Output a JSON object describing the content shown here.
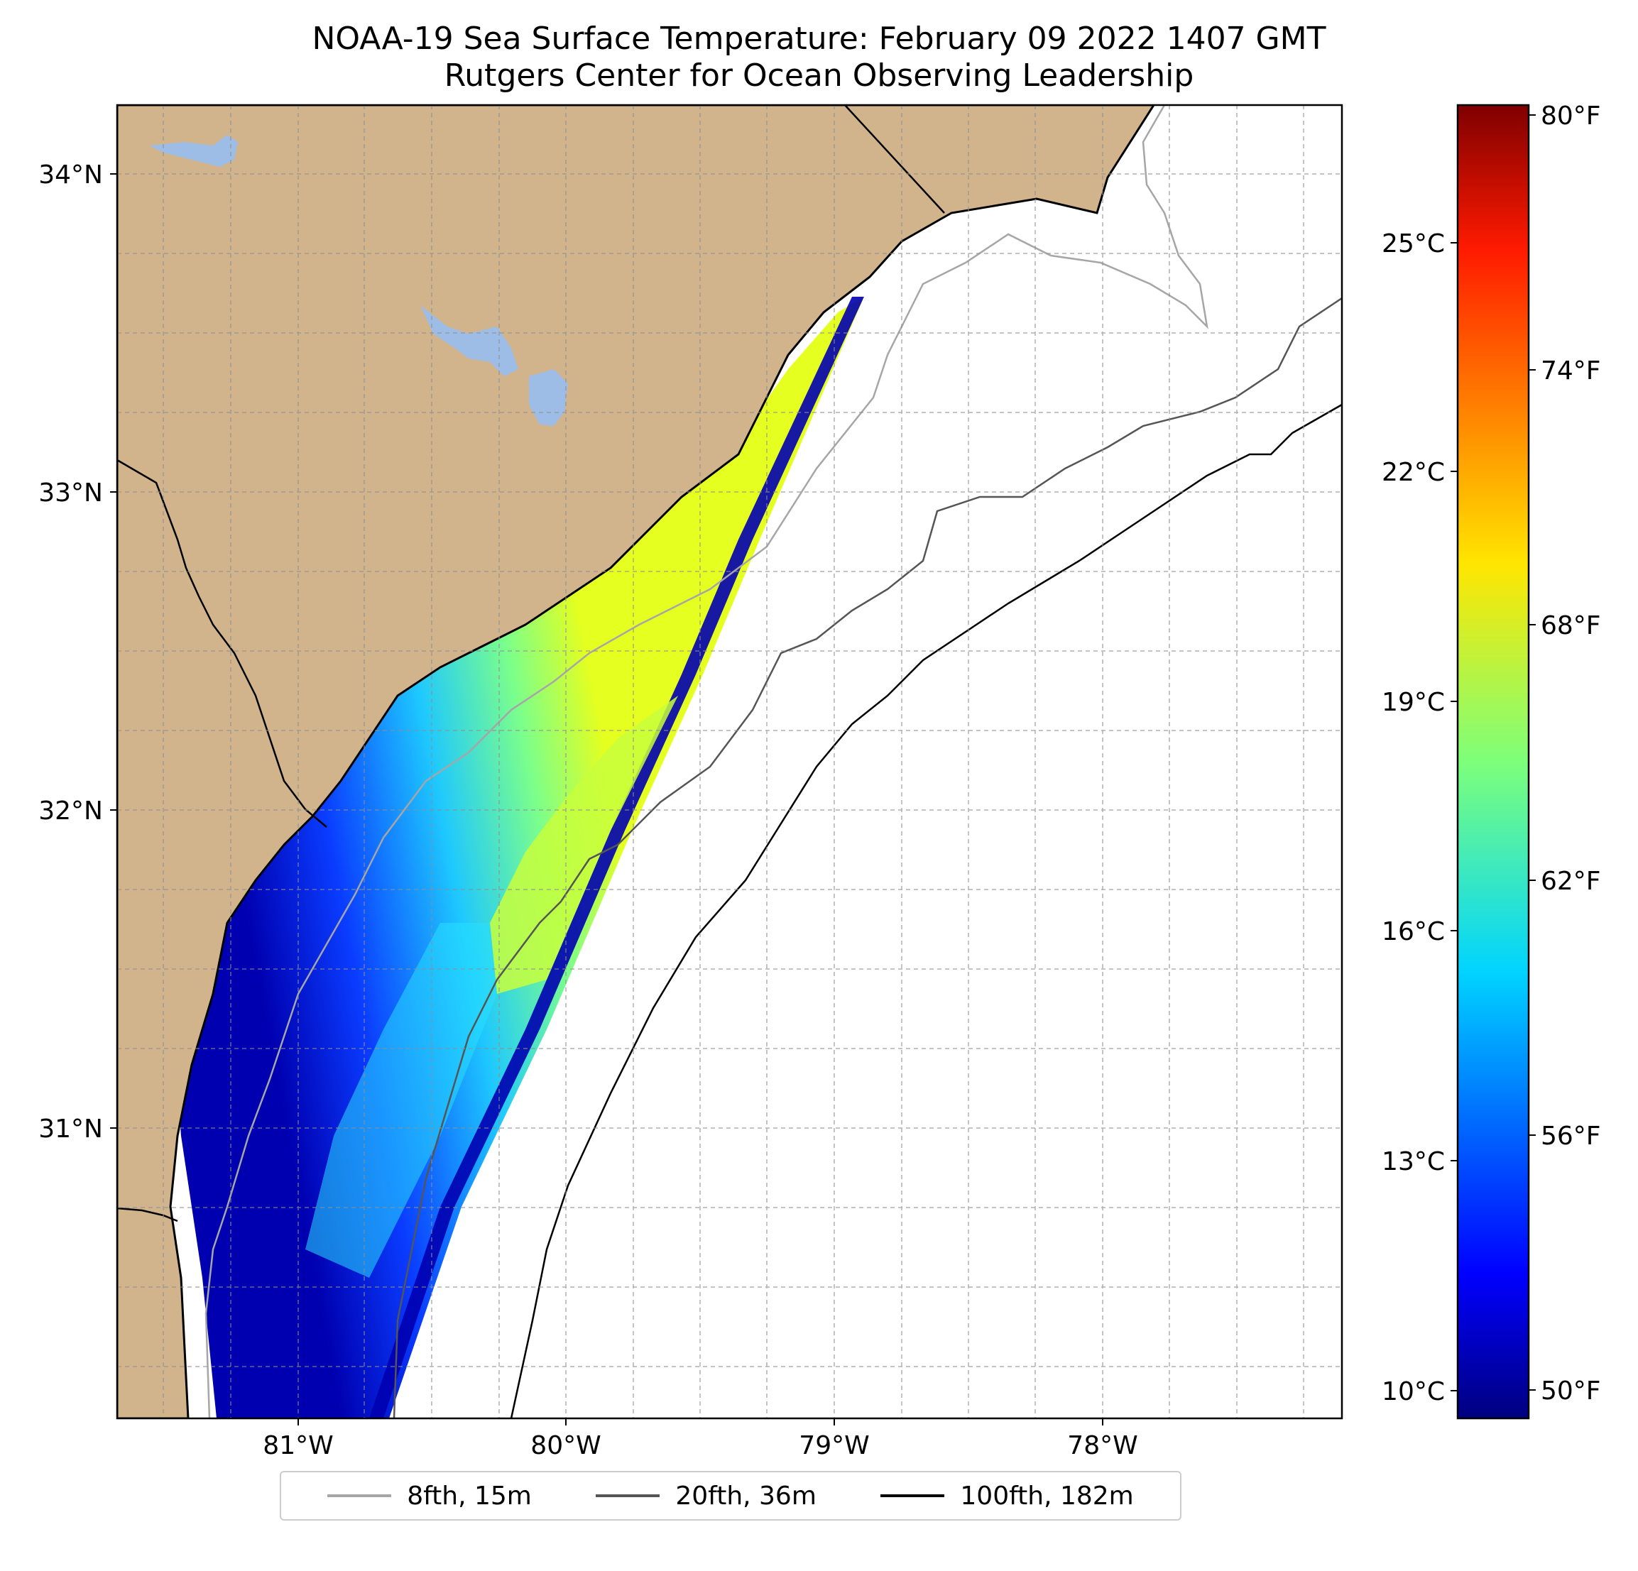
{
  "title": {
    "line1": "NOAA-19 Sea Surface Temperature: February 09 2022 1407 GMT",
    "line2": "Rutgers Center for Ocean Observing Leadership"
  },
  "map": {
    "lat_range": [
      30.2,
      34.23
    ],
    "lon_range": [
      -81.68,
      -77.13
    ],
    "lat_ticks": [
      "34°N",
      "33°N",
      "32°N",
      "31°N"
    ],
    "lon_ticks": [
      "81°W",
      "80°W",
      "79°W",
      "78°W"
    ],
    "gridlines": true,
    "land_color": "#d2b48c",
    "lake_color": "#9ebde6"
  },
  "colorbar": {
    "colormap": "jet",
    "celsius_ticks": [
      "25°C",
      "22°C",
      "19°C",
      "16°C",
      "13°C",
      "10°C"
    ],
    "fahrenheit_ticks": [
      "80°F",
      "74°F",
      "68°F",
      "62°F",
      "56°F",
      "50°F"
    ],
    "range_f": [
      49.5,
      80.5
    ]
  },
  "legend": {
    "items": [
      {
        "label": "8fth, 15m",
        "color": "#a6a6a6"
      },
      {
        "label": "20fth, 36m",
        "color": "#555555"
      },
      {
        "label": "100fth, 182m",
        "color": "#000000"
      }
    ]
  }
}
